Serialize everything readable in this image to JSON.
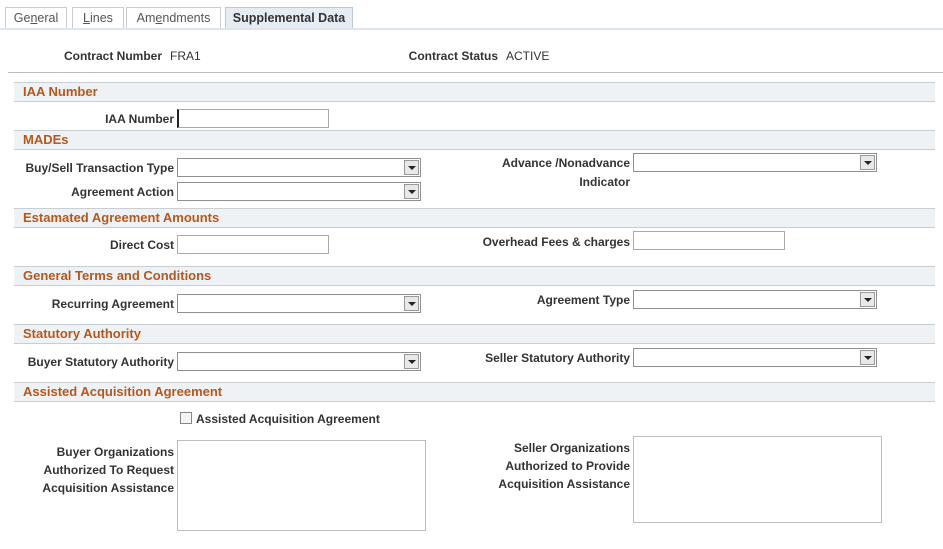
{
  "tabs": [
    {
      "pre": "Ge",
      "key": "n",
      "post": "eral",
      "active": false
    },
    {
      "pre": "",
      "key": "L",
      "post": "ines",
      "active": false
    },
    {
      "pre": "Am",
      "key": "e",
      "post": "ndments",
      "active": false
    },
    {
      "pre": "Supplemental Data",
      "key": "",
      "post": "",
      "active": true
    }
  ],
  "header": {
    "contract_number_label": "Contract Number",
    "contract_number": "FRA1",
    "contract_status_label": "Contract Status",
    "contract_status": "ACTIVE"
  },
  "sections": {
    "iaa": {
      "title": "IAA Number",
      "iaa_number_label": "IAA Number",
      "iaa_number": ""
    },
    "mades": {
      "title": "MADEs",
      "buy_sell_label": "Buy/Sell Transaction Type",
      "buy_sell": "",
      "agreement_action_label": "Agreement Action",
      "agreement_action": "",
      "advance_label_1": "Advance /Nonadvance",
      "advance_label_2": "Indicator",
      "advance": ""
    },
    "amounts": {
      "title": "Estamated Agreement Amounts",
      "direct_cost_label": "Direct Cost",
      "direct_cost": "",
      "overhead_label": "Overhead Fees & charges",
      "overhead": ""
    },
    "terms": {
      "title": "General Terms and Conditions",
      "recurring_label": "Recurring Agreement",
      "recurring": "",
      "agreement_type_label": "Agreement Type",
      "agreement_type": ""
    },
    "statutory": {
      "title": "Statutory Authority",
      "buyer_label": "Buyer Statutory Authority",
      "buyer": "",
      "seller_label": "Seller Statutory Authority",
      "seller": ""
    },
    "assisted": {
      "title": "Assisted Acquisition Agreement",
      "checkbox_label": "Assisted Acquisition Agreement",
      "checked": false,
      "buyer_orgs_label": [
        "Buyer Organizations",
        "Authorized To Request",
        "Acquisition Assistance"
      ],
      "buyer_orgs": "",
      "seller_orgs_label": [
        "Seller Organizations",
        "Authorized to Provide",
        "Acquisition Assistance"
      ],
      "seller_orgs": ""
    }
  }
}
